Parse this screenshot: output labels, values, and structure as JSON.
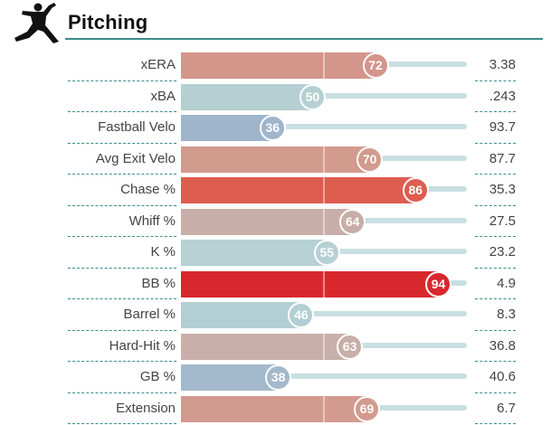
{
  "section": {
    "title": "Pitching",
    "icon": "pitcher-icon"
  },
  "metrics": [
    {
      "label": "xERA",
      "percentile": 72,
      "value": "3.38",
      "color": "#d4958b"
    },
    {
      "label": "xBA",
      "percentile": 50,
      "value": ".243",
      "color": "#b6cfd2"
    },
    {
      "label": "Fastball Velo",
      "percentile": 36,
      "value": "93.7",
      "color": "#9fb5cc"
    },
    {
      "label": "Avg Exit Velo",
      "percentile": 70,
      "value": "87.7",
      "color": "#d39a8e"
    },
    {
      "label": "Chase %",
      "percentile": 86,
      "value": "35.3",
      "color": "#dd5d4f"
    },
    {
      "label": "Whiff %",
      "percentile": 64,
      "value": "27.5",
      "color": "#c8aea8"
    },
    {
      "label": "K %",
      "percentile": 55,
      "value": "23.2",
      "color": "#b6d0d3"
    },
    {
      "label": "BB %",
      "percentile": 94,
      "value": "4.9",
      "color": "#d8282e"
    },
    {
      "label": "Barrel %",
      "percentile": 46,
      "value": "8.3",
      "color": "#b2cfd3"
    },
    {
      "label": "Hard-Hit %",
      "percentile": 63,
      "value": "36.8",
      "color": "#c8afa9"
    },
    {
      "label": "GB %",
      "percentile": 38,
      "value": "40.6",
      "color": "#a3b9cc"
    },
    {
      "label": "Extension",
      "percentile": 69,
      "value": "6.7",
      "color": "#d39a8f"
    }
  ]
}
